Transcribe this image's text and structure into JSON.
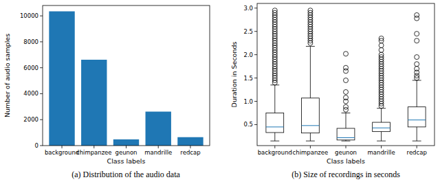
{
  "chart_data": [
    {
      "type": "bar",
      "title": "(a) Distribution of the audio data",
      "x_label": "Class labels",
      "y_label": "Number of audio samples",
      "categories": [
        "background",
        "chimpanzee",
        "geunon",
        "mandrille",
        "redcap"
      ],
      "values": [
        10350,
        6620,
        480,
        2620,
        650
      ],
      "color": "#1f77b4",
      "ylim": [
        0,
        10800
      ],
      "yticks": [
        0,
        2000,
        4000,
        6000,
        8000,
        10000
      ]
    },
    {
      "type": "box",
      "title": "(b) Size of recordings in seconds",
      "x_label": "Class labels",
      "y_label": "Duration in Seconds",
      "categories": [
        "background",
        "chimpanzee",
        "geunon",
        "mandrille",
        "redcap"
      ],
      "boxes": [
        {
          "whislo": 0.15,
          "q1": 0.33,
          "median": 0.45,
          "q3": 0.75,
          "whishi": 1.35,
          "fliers": [
            1.4,
            1.45,
            1.5,
            1.55,
            1.6,
            1.65,
            1.7,
            1.75,
            1.8,
            1.85,
            1.9,
            1.95,
            2.0,
            2.05,
            2.1,
            2.15,
            2.2,
            2.25,
            2.3,
            2.35,
            2.4,
            2.45,
            2.5,
            2.55,
            2.6,
            2.65,
            2.7,
            2.75,
            2.8,
            2.85,
            2.9,
            2.95
          ]
        },
        {
          "whislo": 0.15,
          "q1": 0.32,
          "median": 0.48,
          "q3": 1.07,
          "whishi": 2.18,
          "fliers": [
            2.25,
            2.3,
            2.35,
            2.4,
            2.45,
            2.5,
            2.55,
            2.6,
            2.65,
            2.7,
            2.75,
            2.8,
            2.85,
            2.9,
            2.95
          ]
        },
        {
          "whislo": 0.15,
          "q1": 0.17,
          "median": 0.22,
          "q3": 0.42,
          "whishi": 0.75,
          "fliers": [
            0.82,
            0.88,
            1.0,
            1.08,
            1.2,
            1.45,
            1.65,
            1.72,
            2.02
          ]
        },
        {
          "whislo": 0.15,
          "q1": 0.35,
          "median": 0.43,
          "q3": 0.55,
          "whishi": 0.85,
          "fliers": [
            0.9,
            0.95,
            1.0,
            1.05,
            1.1,
            1.15,
            1.2,
            1.25,
            1.3,
            1.35,
            1.4,
            1.45,
            1.5,
            1.55,
            1.6,
            1.65,
            1.7,
            1.75,
            1.8,
            1.85,
            1.9,
            1.95,
            2.0,
            2.1,
            2.2,
            2.3,
            2.35
          ]
        },
        {
          "whislo": 0.15,
          "q1": 0.45,
          "median": 0.6,
          "q3": 0.88,
          "whishi": 1.45,
          "fliers": [
            1.5,
            1.55,
            1.62,
            1.7,
            1.8,
            1.95,
            2.3,
            2.45,
            2.78,
            2.85
          ]
        }
      ],
      "color": "#1f77b4",
      "ylim": [
        0.05,
        3.1
      ],
      "yticks": [
        0.5,
        {
          "value": 1,
          "label": "1.0"
        },
        1.5,
        {
          "value": 2,
          "label": "2.0"
        },
        2.5,
        {
          "value": 3,
          "label": "3.0"
        }
      ]
    }
  ]
}
